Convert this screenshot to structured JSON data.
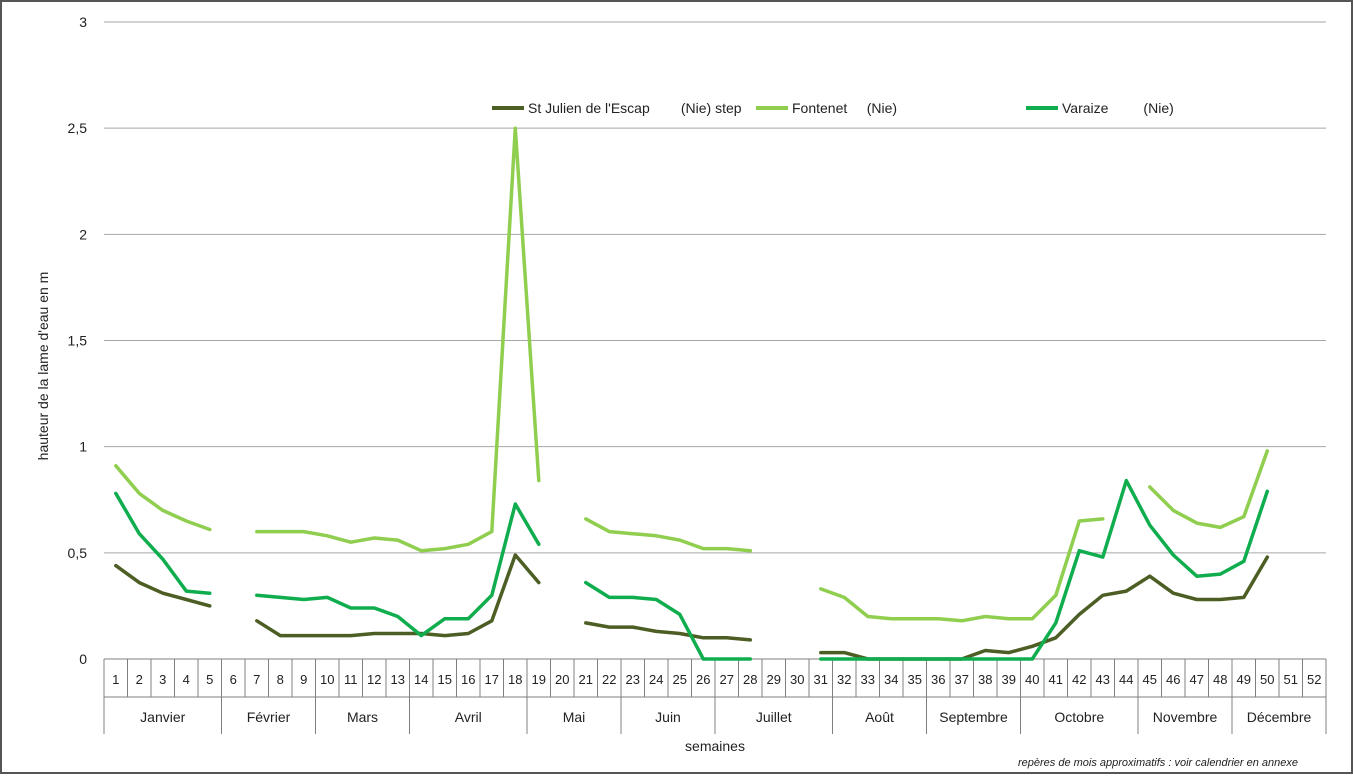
{
  "chart_data": {
    "type": "line",
    "xlabel": "semaines",
    "ylabel": "hauteur de la lame d'eau en m",
    "note": "repères de mois approximatifs : voir calendrier en annexe",
    "ylim": [
      0,
      3
    ],
    "y_ticks": [
      "0",
      "0,5",
      "1",
      "1,5",
      "2",
      "2,5",
      "3"
    ],
    "grid": true,
    "legend_position": "top-center",
    "weeks": [
      "1",
      "2",
      "3",
      "4",
      "5",
      "6",
      "7",
      "8",
      "9",
      "10",
      "11",
      "12",
      "13",
      "14",
      "15",
      "16",
      "17",
      "18",
      "19",
      "20",
      "21",
      "22",
      "23",
      "24",
      "25",
      "26",
      "27",
      "28",
      "29",
      "30",
      "31",
      "32",
      "33",
      "34",
      "35",
      "36",
      "37",
      "38",
      "39",
      "40",
      "41",
      "42",
      "43",
      "44",
      "45",
      "46",
      "47",
      "48",
      "49",
      "50",
      "51",
      "52"
    ],
    "months": [
      {
        "label": "Janvier",
        "start": 1,
        "end": 5
      },
      {
        "label": "Février",
        "start": 6,
        "end": 9
      },
      {
        "label": "Mars",
        "start": 10,
        "end": 13
      },
      {
        "label": "Avril",
        "start": 14,
        "end": 18
      },
      {
        "label": "Mai",
        "start": 19,
        "end": 22
      },
      {
        "label": "Juin",
        "start": 23,
        "end": 26
      },
      {
        "label": "Juillet",
        "start": 27,
        "end": 31
      },
      {
        "label": "Août",
        "start": 32,
        "end": 35
      },
      {
        "label": "Septembre",
        "start": 36,
        "end": 39
      },
      {
        "label": "Octobre",
        "start": 40,
        "end": 44
      },
      {
        "label": "Novembre",
        "start": 45,
        "end": 48
      },
      {
        "label": "Décembre",
        "start": 49,
        "end": 52
      }
    ],
    "series": [
      {
        "name": "St Julien de l'Escap        (Nie) step",
        "color": "#4d5e24",
        "values": [
          0.44,
          0.36,
          0.31,
          0.28,
          0.25,
          null,
          0.18,
          0.11,
          0.11,
          0.11,
          0.11,
          0.12,
          0.12,
          0.12,
          0.11,
          0.12,
          0.18,
          0.49,
          0.36,
          null,
          0.17,
          0.15,
          0.15,
          0.13,
          0.12,
          0.1,
          0.1,
          0.09,
          null,
          null,
          0.03,
          0.03,
          0.0,
          0.0,
          0.0,
          0.0,
          0.0,
          0.04,
          0.03,
          0.06,
          0.1,
          0.21,
          0.3,
          0.32,
          0.39,
          0.31,
          0.28,
          0.28,
          0.29,
          0.48,
          null,
          null
        ]
      },
      {
        "name": "Fontenet     (Nie)",
        "color": "#8fce4e",
        "values": [
          0.91,
          0.78,
          0.7,
          0.65,
          0.61,
          null,
          0.6,
          0.6,
          0.6,
          0.58,
          0.55,
          0.57,
          0.56,
          0.51,
          0.52,
          0.54,
          0.6,
          2.5,
          0.84,
          null,
          0.66,
          0.6,
          0.59,
          0.58,
          0.56,
          0.52,
          0.52,
          0.51,
          null,
          null,
          0.33,
          0.29,
          0.2,
          0.19,
          0.19,
          0.19,
          0.18,
          0.2,
          0.19,
          0.19,
          0.3,
          0.65,
          0.66,
          null,
          0.81,
          0.7,
          0.64,
          0.62,
          0.67,
          0.98,
          null,
          null
        ]
      },
      {
        "name": "Varaize         (Nie)",
        "color": "#10ad4f",
        "values": [
          0.78,
          0.59,
          0.47,
          0.32,
          0.31,
          null,
          0.3,
          0.29,
          0.28,
          0.29,
          0.24,
          0.24,
          0.2,
          0.11,
          0.19,
          0.19,
          0.3,
          0.73,
          0.54,
          null,
          0.36,
          0.29,
          0.29,
          0.28,
          0.21,
          0.0,
          0.0,
          0.0,
          null,
          null,
          0.0,
          0.0,
          0.0,
          0.0,
          0.0,
          0.0,
          0.0,
          0.0,
          0.0,
          0.0,
          0.17,
          0.51,
          0.48,
          0.84,
          0.63,
          0.49,
          0.39,
          0.4,
          0.46,
          0.79,
          null,
          null
        ]
      }
    ]
  }
}
